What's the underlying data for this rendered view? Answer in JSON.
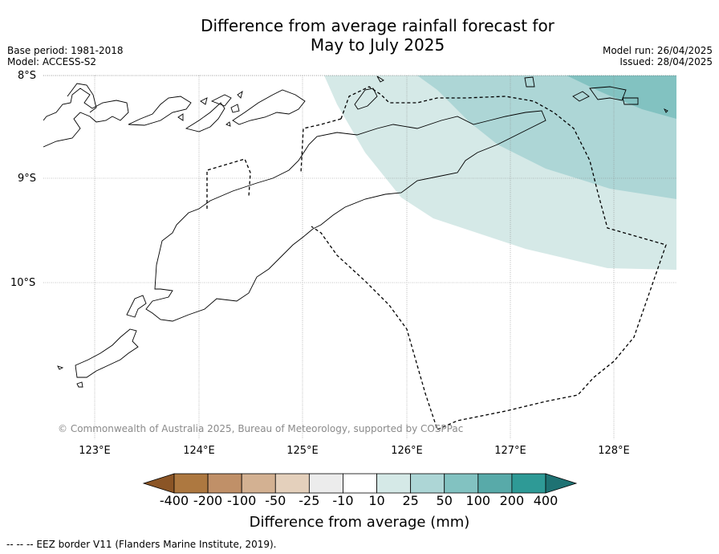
{
  "title_line1": "Difference from average rainfall forecast for",
  "title_line2": "May to July 2025",
  "base_period": "Base period: 1981-2018",
  "model": "Model: ACCESS-S2",
  "model_run": "Model run: 26/04/2025",
  "issued": "Issued: 28/04/2025",
  "lat_labels": [
    "8°S",
    "9°S",
    "10°S"
  ],
  "lon_labels": [
    "123°E",
    "124°E",
    "125°E",
    "126°E",
    "127°E",
    "128°E"
  ],
  "copyright": "© Commonwealth of Australia 2025, Bureau of Meteorology, supported by COSPPac",
  "colorbar": {
    "label": "Difference from average (mm)",
    "ticks": [
      "-400",
      "-200",
      "-100",
      "-50",
      "-25",
      "-10",
      "10",
      "25",
      "50",
      "100",
      "200",
      "400"
    ],
    "colors": [
      "#8b5526",
      "#ad7840",
      "#c09068",
      "#d3b192",
      "#e4d0bc",
      "#ececec",
      "#ffffff",
      "#d5e9e7",
      "#add6d6",
      "#82c2c1",
      "#58aaa9",
      "#2e9a96",
      "#1e7273"
    ]
  },
  "legend_footer": "--  --  -- EEZ border V11 (Flanders Marine Institute, 2019)."
}
